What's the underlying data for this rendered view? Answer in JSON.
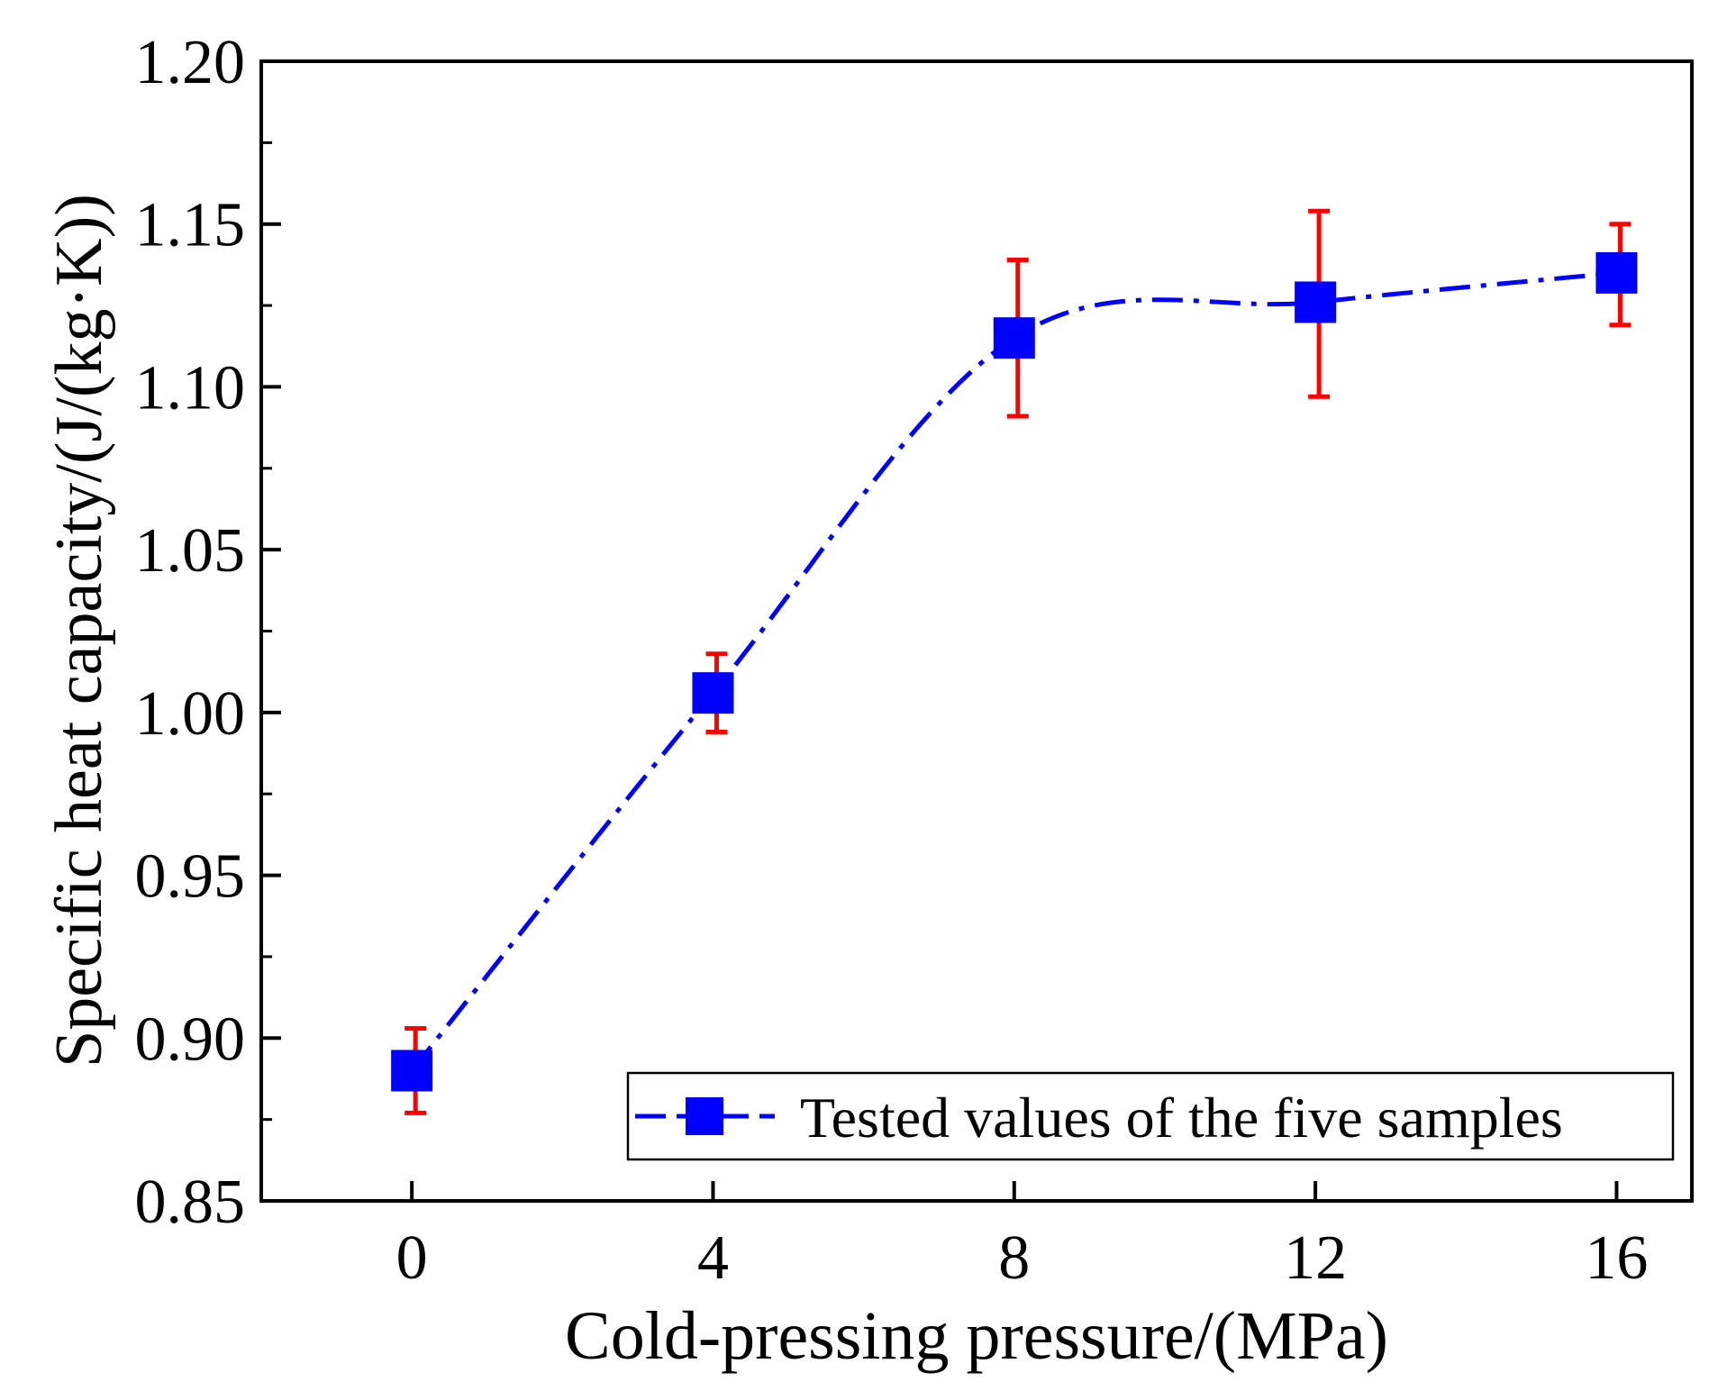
{
  "chart_data": {
    "type": "line",
    "title": "",
    "xlabel": "Cold-pressing pressure/(MPa)",
    "ylabel": "Specific heat capacity/(J/(kg·K))",
    "xlim": [
      -2.0,
      17.0
    ],
    "ylim": [
      0.85,
      1.2
    ],
    "x_ticks": [
      0,
      4,
      8,
      12,
      16
    ],
    "y_ticks": [
      0.85,
      0.9,
      0.95,
      1.0,
      1.05,
      1.1,
      1.15,
      1.2
    ],
    "y_tick_labels": [
      "0.85",
      "0.90",
      "0.95",
      "1.00",
      "1.05",
      "1.10",
      "1.15",
      "1.20"
    ],
    "y_minor_step": 0.025,
    "grid": false,
    "legend_position": "bottom-right",
    "series": [
      {
        "name": "Tested values of the five samples",
        "x": [
          0,
          4,
          8,
          12,
          16
        ],
        "y": [
          0.89,
          1.006,
          1.115,
          1.126,
          1.135
        ],
        "y_err_low": [
          0.877,
          0.994,
          1.091,
          1.097,
          1.119
        ],
        "y_err_high": [
          0.903,
          1.018,
          1.139,
          1.154,
          1.15
        ],
        "line_style": "dash-dot",
        "marker": "square",
        "color": "#0000ff",
        "error_bar_color": "#ff0000"
      }
    ]
  }
}
